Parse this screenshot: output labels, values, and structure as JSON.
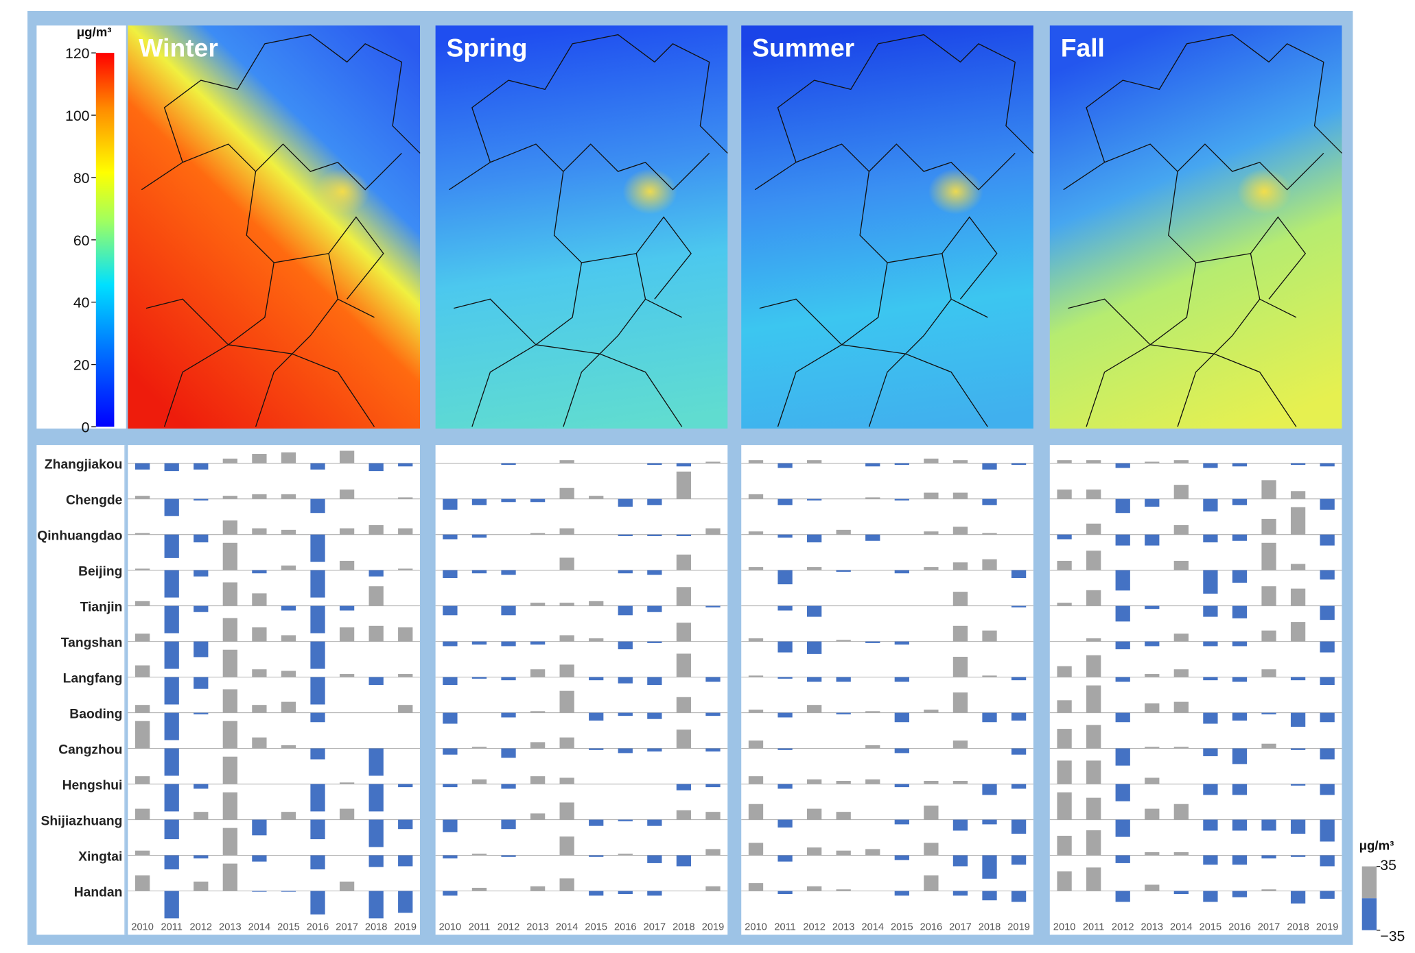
{
  "colorbar": {
    "unit": "μg/m³",
    "lim": [
      0,
      120
    ],
    "ticks": [
      0,
      20,
      40,
      60,
      80,
      100,
      120
    ]
  },
  "bar_legend": {
    "unit": "μg/m³",
    "lim": [
      -35,
      35
    ],
    "ticks": [
      35,
      {
        "value": -35,
        "label": "−35"
      }
    ]
  },
  "chart_data": [
    {
      "type": "bar",
      "title": "Winter",
      "ylim": [
        -35,
        35
      ],
      "positive_color": "#a6a6a6",
      "negative_color": "#4472c4",
      "categories": [
        "2010",
        "2011",
        "2012",
        "2013",
        "2014",
        "2015",
        "2016",
        "2017",
        "2018",
        "2019"
      ],
      "series": [
        {
          "name": "Zhangjiakou",
          "values": [
            -8,
            -10,
            -8,
            6,
            12,
            14,
            -8,
            16,
            -10,
            -4
          ]
        },
        {
          "name": "Chengde",
          "values": [
            4,
            -22,
            -2,
            4,
            6,
            6,
            -18,
            12,
            0,
            2
          ]
        },
        {
          "name": "Qinhuangdao",
          "values": [
            2,
            -30,
            -10,
            18,
            8,
            6,
            -35,
            8,
            12,
            8
          ]
        },
        {
          "name": "Beijing",
          "values": [
            2,
            -35,
            -8,
            35,
            -4,
            6,
            -35,
            12,
            -8,
            2
          ]
        },
        {
          "name": "Tianjin",
          "values": [
            6,
            -35,
            -8,
            30,
            16,
            -6,
            -35,
            -6,
            25,
            0
          ]
        },
        {
          "name": "Tangshan",
          "values": [
            10,
            -35,
            -20,
            30,
            18,
            8,
            -35,
            18,
            20,
            18
          ]
        },
        {
          "name": "Langfang",
          "values": [
            15,
            -35,
            -15,
            35,
            10,
            8,
            -35,
            4,
            -10,
            4
          ]
        },
        {
          "name": "Baoding",
          "values": [
            10,
            -35,
            -2,
            30,
            10,
            14,
            -12,
            0,
            0,
            10
          ]
        },
        {
          "name": "Cangzhou",
          "values": [
            35,
            -35,
            0,
            35,
            14,
            4,
            -14,
            0,
            -35,
            0
          ]
        },
        {
          "name": "Hengshui",
          "values": [
            10,
            -35,
            -6,
            35,
            0,
            0,
            -35,
            2,
            -35,
            -4
          ]
        },
        {
          "name": "Shijiazhuang",
          "values": [
            14,
            -25,
            10,
            35,
            -20,
            10,
            -25,
            14,
            -35,
            -12
          ]
        },
        {
          "name": "Xingtai",
          "values": [
            6,
            -18,
            -4,
            35,
            -8,
            0,
            -18,
            0,
            -15,
            -14
          ]
        },
        {
          "name": "Handan",
          "values": [
            20,
            -35,
            12,
            35,
            -1,
            -1,
            -30,
            12,
            -35,
            -28
          ]
        }
      ]
    },
    {
      "type": "bar",
      "title": "Spring",
      "ylim": [
        -35,
        35
      ],
      "positive_color": "#a6a6a6",
      "negative_color": "#4472c4",
      "categories": [
        "2010",
        "2011",
        "2012",
        "2013",
        "2014",
        "2015",
        "2016",
        "2017",
        "2018",
        "2019"
      ],
      "series": [
        {
          "name": "Zhangjiakou",
          "values": [
            0,
            0,
            -2,
            0,
            4,
            0,
            0,
            -2,
            -4,
            2
          ]
        },
        {
          "name": "Chengde",
          "values": [
            -14,
            -8,
            -4,
            -4,
            14,
            4,
            -10,
            -8,
            35,
            0
          ]
        },
        {
          "name": "Qinhuangdao",
          "values": [
            -6,
            -4,
            0,
            2,
            8,
            0,
            -2,
            -2,
            -2,
            8
          ]
        },
        {
          "name": "Beijing",
          "values": [
            -10,
            -4,
            -6,
            0,
            16,
            0,
            -4,
            -6,
            20,
            0
          ]
        },
        {
          "name": "Tianjin",
          "values": [
            -12,
            0,
            -12,
            4,
            4,
            6,
            -12,
            -8,
            24,
            -2
          ]
        },
        {
          "name": "Tangshan",
          "values": [
            -6,
            -4,
            -6,
            -4,
            8,
            4,
            -10,
            -2,
            24,
            0
          ]
        },
        {
          "name": "Langfang",
          "values": [
            -10,
            -2,
            -4,
            10,
            16,
            -4,
            -8,
            -10,
            30,
            -6
          ]
        },
        {
          "name": "Baoding",
          "values": [
            -14,
            0,
            -6,
            2,
            28,
            -10,
            -4,
            -8,
            20,
            -4
          ]
        },
        {
          "name": "Cangzhou",
          "values": [
            -8,
            2,
            -12,
            8,
            14,
            -2,
            -6,
            -4,
            24,
            -4
          ]
        },
        {
          "name": "Hengshui",
          "values": [
            -4,
            6,
            -6,
            10,
            8,
            0,
            0,
            0,
            -8,
            -4
          ]
        },
        {
          "name": "Shijiazhuang",
          "values": [
            -16,
            0,
            -12,
            8,
            22,
            -8,
            -2,
            -8,
            12,
            10
          ]
        },
        {
          "name": "Xingtai",
          "values": [
            -4,
            2,
            -2,
            0,
            24,
            -2,
            2,
            -10,
            -14,
            8
          ]
        },
        {
          "name": "Handan",
          "values": [
            -6,
            4,
            0,
            6,
            16,
            -6,
            -4,
            -6,
            0,
            6
          ]
        }
      ]
    },
    {
      "type": "bar",
      "title": "Summer",
      "ylim": [
        -35,
        35
      ],
      "positive_color": "#a6a6a6",
      "negative_color": "#4472c4",
      "categories": [
        "2010",
        "2011",
        "2012",
        "2013",
        "2014",
        "2015",
        "2016",
        "2017",
        "2018",
        "2019"
      ],
      "series": [
        {
          "name": "Zhangjiakou",
          "values": [
            4,
            -6,
            4,
            0,
            -4,
            -2,
            6,
            4,
            -8,
            -2
          ]
        },
        {
          "name": "Chengde",
          "values": [
            6,
            -8,
            -2,
            0,
            2,
            -2,
            8,
            8,
            -8,
            0
          ]
        },
        {
          "name": "Qinhuangdao",
          "values": [
            4,
            -4,
            -10,
            6,
            -8,
            0,
            4,
            10,
            2,
            0
          ]
        },
        {
          "name": "Beijing",
          "values": [
            4,
            -18,
            4,
            -2,
            0,
            -4,
            4,
            10,
            14,
            -10
          ]
        },
        {
          "name": "Tianjin",
          "values": [
            0,
            -6,
            -14,
            0,
            0,
            0,
            0,
            18,
            0,
            -2
          ]
        },
        {
          "name": "Tangshan",
          "values": [
            4,
            -14,
            -16,
            2,
            -2,
            -4,
            0,
            20,
            14,
            0
          ]
        },
        {
          "name": "Langfang",
          "values": [
            2,
            -2,
            -6,
            -6,
            0,
            -6,
            0,
            26,
            2,
            -4
          ]
        },
        {
          "name": "Baoding",
          "values": [
            4,
            -6,
            10,
            -2,
            2,
            -12,
            4,
            26,
            -12,
            -10
          ]
        },
        {
          "name": "Cangzhou",
          "values": [
            10,
            -2,
            0,
            0,
            4,
            -6,
            0,
            10,
            0,
            -8
          ]
        },
        {
          "name": "Hengshui",
          "values": [
            10,
            -6,
            6,
            4,
            6,
            -4,
            4,
            4,
            -14,
            -6
          ]
        },
        {
          "name": "Shijiazhuang",
          "values": [
            20,
            -10,
            14,
            10,
            0,
            -6,
            18,
            -14,
            -6,
            -18
          ]
        },
        {
          "name": "Xingtai",
          "values": [
            16,
            -8,
            10,
            6,
            8,
            -6,
            16,
            -14,
            -30,
            -12
          ]
        },
        {
          "name": "Handan",
          "values": [
            10,
            -4,
            6,
            2,
            0,
            -6,
            20,
            -6,
            -12,
            -14
          ]
        }
      ]
    },
    {
      "type": "bar",
      "title": "Fall",
      "ylim": [
        -35,
        35
      ],
      "positive_color": "#a6a6a6",
      "negative_color": "#4472c4",
      "categories": [
        "2010",
        "2011",
        "2012",
        "2013",
        "2014",
        "2015",
        "2016",
        "2017",
        "2018",
        "2019"
      ],
      "series": [
        {
          "name": "Zhangjiakou",
          "values": [
            4,
            4,
            -6,
            2,
            4,
            -6,
            -4,
            0,
            -2,
            -4
          ]
        },
        {
          "name": "Chengde",
          "values": [
            12,
            12,
            -18,
            -10,
            18,
            -16,
            -8,
            24,
            10,
            -14
          ]
        },
        {
          "name": "Qinhuangdao",
          "values": [
            -6,
            14,
            -14,
            -14,
            12,
            -10,
            -8,
            20,
            35,
            -14
          ]
        },
        {
          "name": "Beijing",
          "values": [
            12,
            25,
            -26,
            0,
            12,
            -30,
            -16,
            35,
            8,
            -12
          ]
        },
        {
          "name": "Tianjin",
          "values": [
            4,
            20,
            -20,
            -4,
            0,
            -14,
            -16,
            25,
            22,
            -18
          ]
        },
        {
          "name": "Tangshan",
          "values": [
            0,
            4,
            -10,
            -6,
            10,
            -6,
            -6,
            14,
            25,
            -14
          ]
        },
        {
          "name": "Langfang",
          "values": [
            14,
            28,
            -6,
            4,
            10,
            -4,
            -6,
            10,
            -4,
            -10
          ]
        },
        {
          "name": "Baoding",
          "values": [
            16,
            35,
            -12,
            12,
            14,
            -14,
            -10,
            -2,
            -18,
            -12
          ]
        },
        {
          "name": "Cangzhou",
          "values": [
            25,
            30,
            -22,
            2,
            2,
            -10,
            -20,
            6,
            -2,
            -14
          ]
        },
        {
          "name": "Hengshui",
          "values": [
            30,
            30,
            -22,
            8,
            0,
            -14,
            -14,
            0,
            -2,
            -14
          ]
        },
        {
          "name": "Shijiazhuang",
          "values": [
            35,
            28,
            -22,
            14,
            20,
            -14,
            -14,
            -14,
            -18,
            -28
          ]
        },
        {
          "name": "Xingtai",
          "values": [
            25,
            32,
            -10,
            4,
            4,
            -12,
            -12,
            -4,
            -2,
            -14
          ]
        },
        {
          "name": "Handan",
          "values": [
            25,
            30,
            -14,
            8,
            -4,
            -14,
            -8,
            2,
            -16,
            -10
          ]
        }
      ]
    }
  ]
}
